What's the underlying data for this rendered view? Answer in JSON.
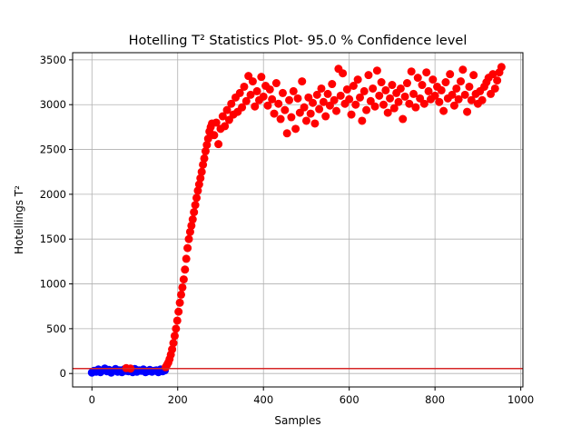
{
  "chart_data": {
    "type": "scatter",
    "title": "Hotelling T² Statistics Plot- 95.0 % Confidence level",
    "xlabel": "Samples",
    "ylabel": "Hotellings T²",
    "xlim": [
      -45,
      1005
    ],
    "ylim": [
      -150,
      3580
    ],
    "xticks": [
      0,
      200,
      400,
      600,
      800,
      1000
    ],
    "yticks": [
      0,
      500,
      1000,
      1500,
      2000,
      2500,
      3000,
      3500
    ],
    "grid": true,
    "legend": "none",
    "threshold": {
      "value": 55,
      "color": "#d62728"
    },
    "series": [
      {
        "color": "#0000ff",
        "points": [
          [
            0,
            10
          ],
          [
            5,
            30
          ],
          [
            10,
            20
          ],
          [
            15,
            45
          ],
          [
            20,
            15
          ],
          [
            25,
            35
          ],
          [
            30,
            55
          ],
          [
            35,
            25
          ],
          [
            40,
            40
          ],
          [
            45,
            10
          ],
          [
            50,
            30
          ],
          [
            55,
            50
          ],
          [
            60,
            20
          ],
          [
            65,
            35
          ],
          [
            70,
            15
          ],
          [
            75,
            45
          ],
          [
            80,
            30
          ],
          [
            85,
            25
          ],
          [
            90,
            40
          ],
          [
            95,
            15
          ],
          [
            100,
            50
          ],
          [
            105,
            20
          ],
          [
            110,
            35
          ],
          [
            115,
            30
          ],
          [
            120,
            45
          ],
          [
            125,
            15
          ],
          [
            130,
            25
          ],
          [
            135,
            40
          ],
          [
            140,
            20
          ],
          [
            145,
            30
          ],
          [
            150,
            35
          ],
          [
            155,
            15
          ],
          [
            160,
            45
          ],
          [
            165,
            25
          ],
          [
            170,
            35
          ]
        ]
      },
      {
        "color": "#ff0000",
        "points": [
          [
            80,
            60
          ],
          [
            90,
            55
          ],
          [
            172,
            70
          ],
          [
            175,
            95
          ],
          [
            178,
            120
          ],
          [
            181,
            160
          ],
          [
            184,
            210
          ],
          [
            187,
            270
          ],
          [
            190,
            340
          ],
          [
            193,
            420
          ],
          [
            196,
            500
          ],
          [
            199,
            590
          ],
          [
            202,
            690
          ],
          [
            205,
            790
          ],
          [
            208,
            880
          ],
          [
            211,
            960
          ],
          [
            214,
            1050
          ],
          [
            217,
            1160
          ],
          [
            220,
            1280
          ],
          [
            223,
            1400
          ],
          [
            226,
            1500
          ],
          [
            229,
            1580
          ],
          [
            232,
            1650
          ],
          [
            235,
            1720
          ],
          [
            238,
            1800
          ],
          [
            241,
            1880
          ],
          [
            244,
            1960
          ],
          [
            247,
            2040
          ],
          [
            250,
            2110
          ],
          [
            253,
            2180
          ],
          [
            256,
            2250
          ],
          [
            259,
            2330
          ],
          [
            262,
            2400
          ],
          [
            265,
            2480
          ],
          [
            268,
            2550
          ],
          [
            271,
            2620
          ],
          [
            274,
            2700
          ],
          [
            277,
            2750
          ],
          [
            280,
            2790
          ],
          [
            285,
            2660
          ],
          [
            290,
            2800
          ],
          [
            295,
            2560
          ],
          [
            300,
            2730
          ],
          [
            305,
            2870
          ],
          [
            310,
            2760
          ],
          [
            315,
            2940
          ],
          [
            320,
            2830
          ],
          [
            325,
            3010
          ],
          [
            330,
            2890
          ],
          [
            335,
            3080
          ],
          [
            340,
            2920
          ],
          [
            345,
            3130
          ],
          [
            350,
            2970
          ],
          [
            355,
            3200
          ],
          [
            360,
            3040
          ],
          [
            365,
            3320
          ],
          [
            370,
            3110
          ],
          [
            375,
            3260
          ],
          [
            380,
            2980
          ],
          [
            385,
            3150
          ],
          [
            390,
            3050
          ],
          [
            395,
            3310
          ],
          [
            400,
            3090
          ],
          [
            405,
            3210
          ],
          [
            410,
            2990
          ],
          [
            415,
            3170
          ],
          [
            420,
            3060
          ],
          [
            425,
            2900
          ],
          [
            430,
            3240
          ],
          [
            435,
            3010
          ],
          [
            440,
            2840
          ],
          [
            445,
            3130
          ],
          [
            450,
            2940
          ],
          [
            455,
            2680
          ],
          [
            460,
            3050
          ],
          [
            465,
            2860
          ],
          [
            470,
            3150
          ],
          [
            475,
            2730
          ],
          [
            480,
            3070
          ],
          [
            485,
            2910
          ],
          [
            490,
            3260
          ],
          [
            495,
            2970
          ],
          [
            500,
            2820
          ],
          [
            505,
            3080
          ],
          [
            510,
            2900
          ],
          [
            515,
            3020
          ],
          [
            520,
            2790
          ],
          [
            525,
            3110
          ],
          [
            530,
            2950
          ],
          [
            535,
            3180
          ],
          [
            540,
            3030
          ],
          [
            545,
            2870
          ],
          [
            550,
            3120
          ],
          [
            555,
            2990
          ],
          [
            560,
            3230
          ],
          [
            565,
            3050
          ],
          [
            570,
            2930
          ],
          [
            575,
            3400
          ],
          [
            580,
            3100
          ],
          [
            585,
            3350
          ],
          [
            590,
            3010
          ],
          [
            595,
            3170
          ],
          [
            600,
            3060
          ],
          [
            605,
            2890
          ],
          [
            610,
            3210
          ],
          [
            615,
            3000
          ],
          [
            620,
            3280
          ],
          [
            625,
            3080
          ],
          [
            630,
            2820
          ],
          [
            635,
            3150
          ],
          [
            640,
            2940
          ],
          [
            645,
            3330
          ],
          [
            650,
            3040
          ],
          [
            655,
            3180
          ],
          [
            660,
            2980
          ],
          [
            665,
            3380
          ],
          [
            670,
            3100
          ],
          [
            675,
            3250
          ],
          [
            680,
            3000
          ],
          [
            685,
            3160
          ],
          [
            690,
            2910
          ],
          [
            695,
            3070
          ],
          [
            700,
            3220
          ],
          [
            705,
            2960
          ],
          [
            710,
            3130
          ],
          [
            715,
            3030
          ],
          [
            720,
            3180
          ],
          [
            725,
            2840
          ],
          [
            730,
            3090
          ],
          [
            735,
            3240
          ],
          [
            740,
            3010
          ],
          [
            745,
            3370
          ],
          [
            750,
            3120
          ],
          [
            755,
            2970
          ],
          [
            760,
            3300
          ],
          [
            765,
            3070
          ],
          [
            770,
            3220
          ],
          [
            775,
            3010
          ],
          [
            780,
            3360
          ],
          [
            785,
            3150
          ],
          [
            790,
            3060
          ],
          [
            795,
            3280
          ],
          [
            800,
            3100
          ],
          [
            805,
            3200
          ],
          [
            810,
            3030
          ],
          [
            815,
            3160
          ],
          [
            820,
            2930
          ],
          [
            825,
            3250
          ],
          [
            830,
            3070
          ],
          [
            835,
            3340
          ],
          [
            840,
            3110
          ],
          [
            845,
            2990
          ],
          [
            850,
            3180
          ],
          [
            855,
            3060
          ],
          [
            860,
            3260
          ],
          [
            865,
            3390
          ],
          [
            870,
            3110
          ],
          [
            875,
            2920
          ],
          [
            880,
            3200
          ],
          [
            885,
            3050
          ],
          [
            890,
            3330
          ],
          [
            895,
            3120
          ],
          [
            900,
            3010
          ],
          [
            905,
            3150
          ],
          [
            910,
            3050
          ],
          [
            915,
            3200
          ],
          [
            920,
            3250
          ],
          [
            925,
            3300
          ],
          [
            930,
            3120
          ],
          [
            935,
            3340
          ],
          [
            940,
            3180
          ],
          [
            945,
            3270
          ],
          [
            950,
            3360
          ],
          [
            955,
            3420
          ]
        ]
      }
    ]
  }
}
